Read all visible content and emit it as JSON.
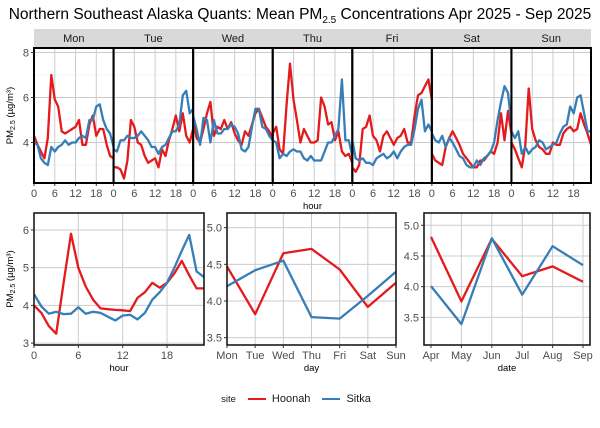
{
  "title": {
    "prefix": "Northern Southeast Alaska Quants: Mean PM",
    "subscript": "2.5",
    "suffix": " Concentrations Apr 2025 - Sep 2025"
  },
  "legend": {
    "title": "site",
    "items": [
      {
        "label": "Hoonah",
        "color": "#e41a1c"
      },
      {
        "label": "Sitka",
        "color": "#377eb8"
      }
    ]
  },
  "chart_data": [
    {
      "type": "line",
      "title": "Hourly mean by day of week",
      "xlabel": "hour",
      "ylabel": "PM2.5 (µg/m³)",
      "ylabel_main": "PM",
      "ylabel_sub": "2.5",
      "ylabel_unit": " (µg/m³)",
      "facets": [
        "Mon",
        "Tue",
        "Wed",
        "Thu",
        "Fri",
        "Sat",
        "Sun"
      ],
      "xlim": [
        0,
        23
      ],
      "x_ticks": [
        0,
        6,
        12,
        18
      ],
      "ylim": [
        2.2,
        8.2
      ],
      "y_ticks": [
        4,
        6,
        8
      ],
      "grid": true,
      "series": [
        {
          "name": "Hoonah",
          "values_by_facet": [
            [
              4.3,
              3.9,
              3.6,
              3.3,
              4.2,
              7.0,
              5.9,
              5.6,
              4.5,
              4.4,
              4.5,
              4.6,
              4.7,
              5.0,
              3.9,
              3.9,
              4.8,
              5.2,
              4.3,
              4.6,
              4.6,
              3.9,
              3.4,
              3.3
            ],
            [
              2.9,
              2.9,
              2.8,
              2.4,
              3.2,
              5.0,
              4.7,
              4.0,
              3.9,
              3.4,
              3.1,
              3.2,
              3.3,
              2.9,
              3.7,
              3.4,
              4.1,
              4.6,
              5.2,
              4.5,
              5.3,
              4.3,
              4.0,
              4.6
            ],
            [
              4.9,
              4.2,
              4.0,
              4.6,
              5.3,
              5.8,
              4.3,
              4.7,
              4.6,
              5.0,
              4.6,
              4.9,
              4.4,
              4.1,
              3.9,
              4.5,
              4.3,
              4.8,
              5.3,
              5.5,
              5.1,
              4.7,
              4.5,
              4.2
            ],
            [
              4.4,
              4.7,
              3.7,
              3.5,
              5.7,
              7.5,
              5.9,
              5.0,
              4.0,
              4.6,
              4.3,
              4.0,
              4.0,
              4.1,
              6.0,
              5.6,
              4.8,
              4.9,
              4.1,
              4.5,
              3.6,
              3.4,
              3.5,
              3.1
            ],
            [
              2.9,
              2.7,
              3.0,
              4.6,
              4.7,
              5.2,
              4.3,
              4.1,
              3.6,
              4.3,
              4.5,
              4.2,
              3.9,
              4.2,
              4.3,
              4.6,
              4.0,
              4.0,
              5.2,
              6.1,
              6.2,
              6.5,
              6.8,
              5.9
            ],
            [
              3.5,
              3.2,
              3.1,
              3.0,
              3.8,
              4.2,
              4.5,
              4.2,
              3.9,
              3.5,
              3.3,
              3.1,
              2.9,
              2.9,
              3.2,
              3.2,
              3.4,
              3.6,
              3.5,
              4.0,
              5.3,
              4.1,
              5.4,
              4.4
            ],
            [
              4.0,
              3.7,
              3.3,
              2.9,
              3.9,
              6.4,
              4.6,
              4.1,
              3.8,
              3.7,
              3.5,
              3.5,
              4.0,
              3.9,
              3.9,
              4.4,
              4.6,
              4.7,
              4.5,
              4.6,
              5.3,
              4.8,
              4.4,
              3.9
            ]
          ]
        },
        {
          "name": "Sitka",
          "values_by_facet": [
            [
              4.0,
              3.9,
              3.3,
              3.1,
              3.0,
              3.8,
              3.6,
              3.8,
              3.9,
              4.1,
              3.9,
              4.0,
              4.0,
              4.2,
              4.3,
              4.2,
              5.0,
              5.0,
              5.6,
              5.7,
              5.0,
              4.6,
              4.4,
              3.8
            ],
            [
              3.7,
              3.6,
              4.1,
              4.1,
              4.3,
              4.2,
              4.2,
              4.3,
              4.5,
              4.3,
              4.1,
              3.8,
              3.8,
              3.5,
              3.8,
              3.9,
              4.2,
              4.5,
              4.5,
              4.8,
              6.1,
              6.3,
              5.3,
              5.5
            ],
            [
              5.2,
              4.6,
              3.9,
              5.1,
              5.0,
              4.0,
              5.0,
              4.4,
              4.4,
              4.6,
              4.6,
              4.8,
              4.7,
              4.4,
              3.7,
              3.6,
              3.8,
              4.7,
              5.5,
              5.5,
              4.7,
              4.6,
              4.3,
              4.1
            ],
            [
              4.1,
              4.0,
              3.3,
              3.5,
              3.4,
              3.6,
              3.7,
              3.6,
              3.6,
              3.3,
              3.2,
              3.4,
              3.2,
              3.2,
              3.2,
              3.6,
              4.0,
              4.0,
              4.3,
              4.6,
              6.8,
              4.1,
              4.1,
              3.4
            ],
            [
              4.1,
              3.3,
              3.2,
              3.3,
              3.1,
              3.1,
              3.0,
              3.3,
              3.4,
              3.5,
              3.3,
              3.4,
              3.6,
              3.3,
              3.6,
              3.8,
              3.9,
              3.9,
              4.6,
              5.5,
              5.9,
              4.5,
              4.8,
              4.5
            ],
            [
              4.4,
              4.1,
              4.0,
              4.3,
              3.8,
              4.2,
              4.0,
              3.7,
              3.4,
              3.3,
              3.0,
              2.9,
              2.9,
              3.2,
              3.0,
              3.3,
              3.4,
              3.6,
              4.0,
              5.0,
              5.8,
              6.5,
              6.2,
              4.8
            ],
            [
              4.5,
              4.2,
              4.5,
              3.5,
              3.8,
              3.5,
              3.7,
              3.8,
              4.1,
              4.0,
              3.7,
              3.8,
              3.9,
              4.0,
              4.4,
              4.7,
              4.8,
              5.6,
              5.3,
              6.0,
              6.1,
              5.3,
              4.5,
              4.5
            ]
          ]
        }
      ]
    },
    {
      "type": "line",
      "title": "Mean by hour",
      "xlabel": "hour",
      "ylabel": "PM2.5 (µg/m³)",
      "ylabel_main": "PM",
      "ylabel_sub": "2.5",
      "ylabel_unit": " (µg/m³)",
      "x": [
        0,
        1,
        2,
        3,
        4,
        5,
        6,
        7,
        8,
        9,
        10,
        11,
        12,
        13,
        14,
        15,
        16,
        17,
        18,
        19,
        20,
        21,
        22,
        23
      ],
      "xlim": [
        0,
        23
      ],
      "x_ticks": [
        0,
        6,
        12,
        18
      ],
      "x_tick_labels": [
        "0",
        "6",
        "12",
        "18"
      ],
      "ylim": [
        2.95,
        6.45
      ],
      "y_ticks": [
        3,
        4,
        5,
        6
      ],
      "y_tick_labels": [
        "3",
        "4",
        "5",
        "6"
      ],
      "grid": true,
      "series": [
        {
          "name": "Hoonah",
          "values": [
            4.0,
            3.8,
            3.45,
            3.25,
            4.6,
            5.9,
            5.0,
            4.5,
            4.15,
            3.92,
            3.9,
            3.88,
            3.87,
            3.85,
            4.2,
            4.35,
            4.6,
            4.47,
            4.6,
            4.85,
            5.18,
            4.8,
            4.45,
            4.45
          ]
        },
        {
          "name": "Sitka",
          "values": [
            4.3,
            3.97,
            3.78,
            3.83,
            3.77,
            3.78,
            3.95,
            3.78,
            3.83,
            3.8,
            3.7,
            3.6,
            3.73,
            3.75,
            3.63,
            3.8,
            4.15,
            4.35,
            4.6,
            5.0,
            5.45,
            5.87,
            4.9,
            4.75
          ]
        }
      ]
    },
    {
      "type": "line",
      "title": "Mean by day",
      "xlabel": "day",
      "ylabel": "",
      "categories": [
        "Mon",
        "Tue",
        "Wed",
        "Thu",
        "Fri",
        "Sat",
        "Sun"
      ],
      "ylim": [
        3.4,
        5.2
      ],
      "y_ticks": [
        3.5,
        4.0,
        4.5,
        5.0
      ],
      "y_tick_labels": [
        "3.5",
        "4.0",
        "4.5",
        "5.0"
      ],
      "grid": true,
      "series": [
        {
          "name": "Hoonah",
          "values": [
            4.47,
            3.82,
            4.65,
            4.71,
            4.43,
            3.92,
            4.25
          ]
        },
        {
          "name": "Sitka",
          "values": [
            4.2,
            4.42,
            4.55,
            3.78,
            3.76,
            4.07,
            4.4
          ]
        }
      ]
    },
    {
      "type": "line",
      "title": "Mean by month",
      "xlabel": "date",
      "ylabel": "",
      "categories": [
        "Apr",
        "May",
        "Jun",
        "Jul",
        "Aug",
        "Sep"
      ],
      "ylim": [
        3.05,
        5.2
      ],
      "y_ticks": [
        3.5,
        4.0,
        4.5,
        5.0
      ],
      "y_tick_labels": [
        "3.5",
        "4.0",
        "4.5",
        "5.0"
      ],
      "grid": true,
      "series": [
        {
          "name": "Hoonah",
          "values": [
            4.81,
            3.76,
            4.78,
            4.17,
            4.33,
            4.08
          ]
        },
        {
          "name": "Sitka",
          "values": [
            4.01,
            3.39,
            4.79,
            3.87,
            4.66,
            4.35
          ]
        }
      ]
    }
  ]
}
